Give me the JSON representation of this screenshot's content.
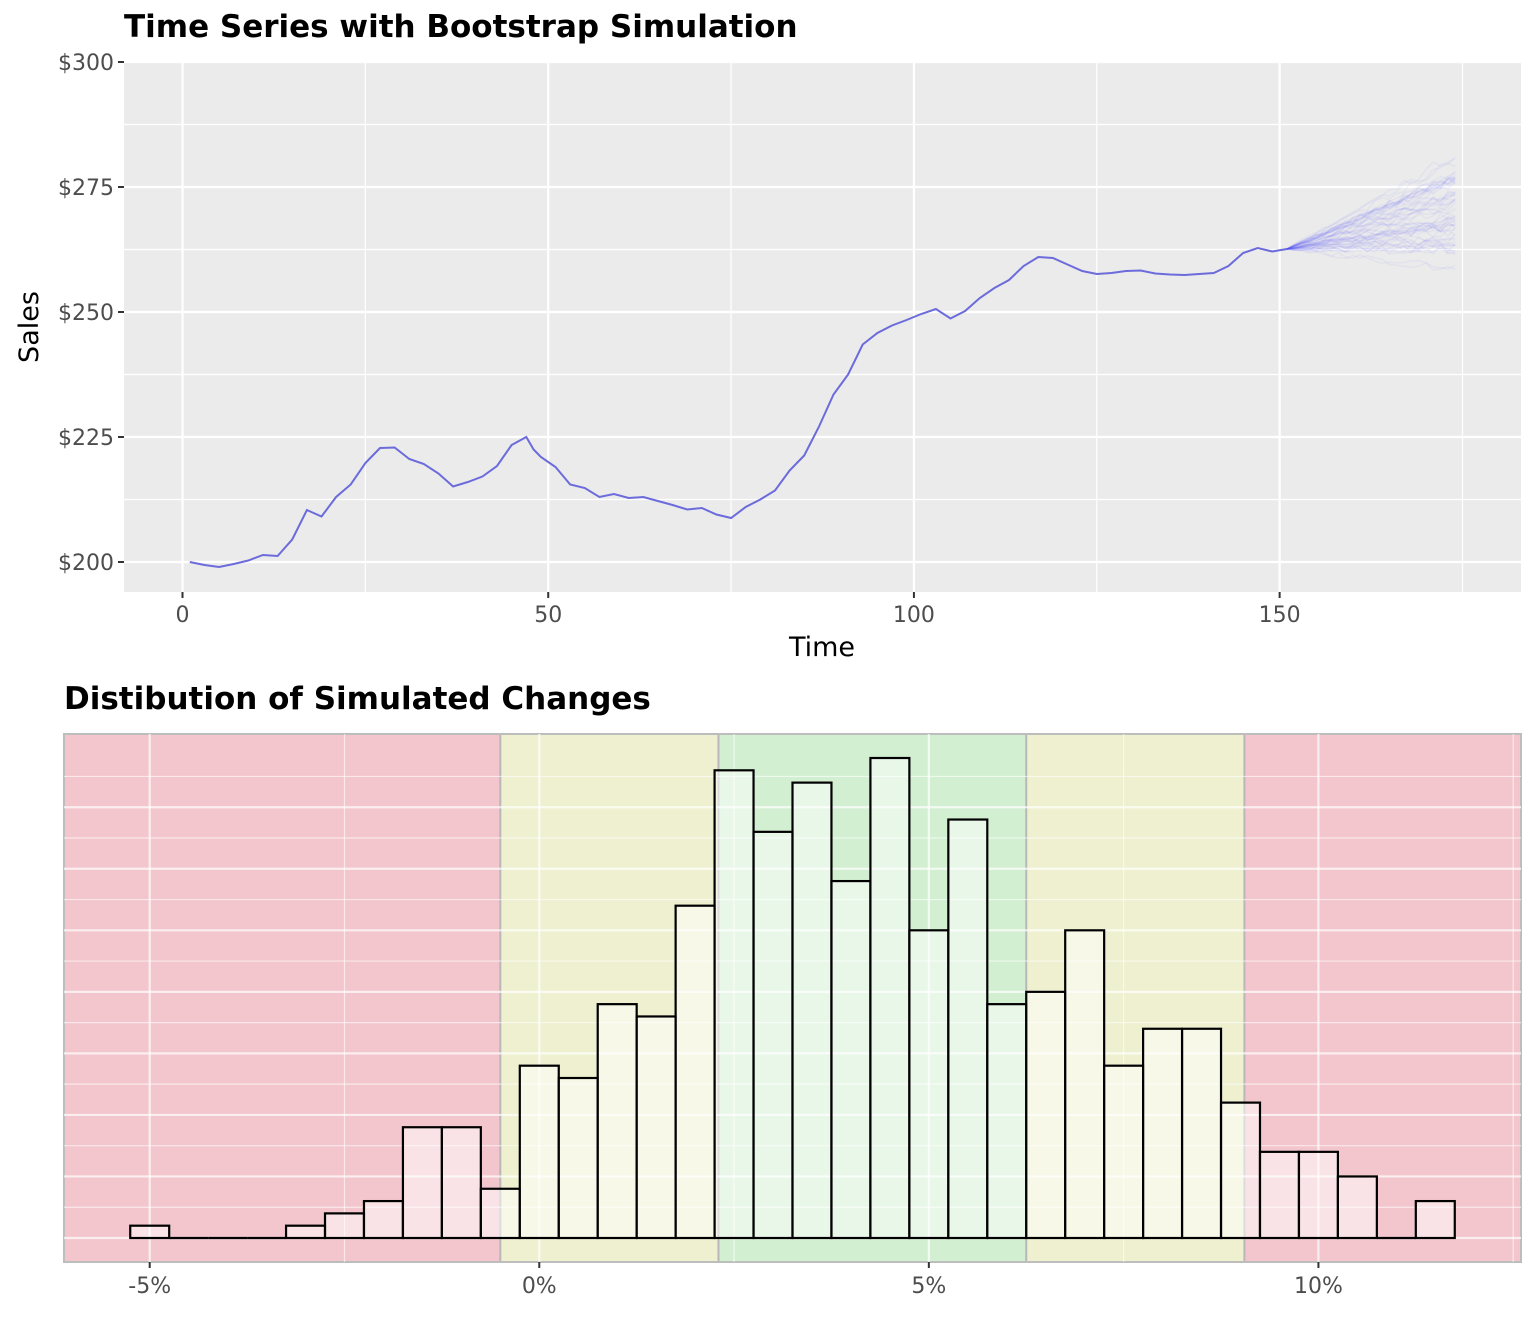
{
  "chart_data": [
    {
      "type": "line",
      "title": "Time Series with Bootstrap Simulation",
      "xlabel": "Time",
      "ylabel": "Sales",
      "xlim": [
        -8,
        183
      ],
      "ylim": [
        194,
        300
      ],
      "x_ticks": [
        0,
        50,
        100,
        150
      ],
      "x_tick_labels": [
        "0",
        "50",
        "100",
        "150"
      ],
      "y_ticks": [
        200,
        225,
        250,
        275,
        300
      ],
      "y_tick_labels": [
        "$200",
        "$225",
        "$250",
        "$275",
        "$300"
      ],
      "grid": true,
      "line_color": "#6b6bdc",
      "simulation_color": "#4d4dff",
      "series": [
        {
          "x": [
            1,
            3,
            5,
            7,
            9,
            11,
            13,
            15,
            17,
            19,
            21,
            23,
            25,
            27,
            29,
            31,
            33,
            35,
            37,
            39,
            41,
            43,
            45,
            47,
            48,
            49,
            51,
            53,
            55,
            57,
            59,
            61,
            63,
            65,
            67,
            69,
            71,
            73,
            75,
            77,
            79,
            81,
            83,
            85,
            87,
            89,
            91,
            93,
            95,
            97,
            99,
            101,
            103,
            105,
            107,
            109,
            111,
            113,
            115,
            117,
            119,
            121,
            123,
            125,
            127,
            129,
            131,
            133,
            135,
            137,
            139,
            141,
            143,
            145,
            147,
            149,
            151
          ],
          "values": [
            200,
            199.4,
            199,
            199.6,
            200.3,
            201.4,
            201.2,
            204.5,
            210.4,
            209.1,
            213,
            215.5,
            219.8,
            222.8,
            222.9,
            220.6,
            219.6,
            217.7,
            215.1,
            216,
            217.1,
            219.2,
            223.4,
            225,
            222.5,
            221,
            219,
            215.5,
            214.8,
            213,
            213.6,
            212.8,
            213,
            212.2,
            211.4,
            210.5,
            210.8,
            209.5,
            208.8,
            211,
            212.5,
            214.3,
            218.3,
            221.3,
            227,
            233.5,
            237.5,
            243.5,
            245.8,
            247.3,
            248.4,
            249.6,
            250.6,
            248.7,
            250.2,
            252.8,
            254.8,
            256.4,
            259.2,
            261,
            260.8,
            259.5,
            258.2,
            257.6,
            257.8,
            258.2,
            258.3,
            257.7,
            257.5,
            257.4,
            257.6,
            257.8,
            259.2,
            261.8,
            262.8,
            262.1,
            262.6
          ]
        }
      ],
      "simulation": {
        "start_x": 151,
        "end_x": 174,
        "start_value": 262.6,
        "end_value_range": [
          255,
          287
        ],
        "median_end_value": 272
      }
    },
    {
      "type": "bar",
      "title": "Distibution of Simulated Changes",
      "xlabel": "",
      "ylabel": "",
      "xlim": [
        -6.1,
        12.6
      ],
      "x_ticks": [
        -5,
        0,
        5,
        10
      ],
      "x_tick_labels": [
        "-5%",
        "0%",
        "5%",
        "10%"
      ],
      "grid": true,
      "bin_width": 0.5,
      "bin_left_edges": [
        -5.25,
        -4.75,
        -4.25,
        -3.75,
        -3.25,
        -2.75,
        -2.25,
        -1.75,
        -1.25,
        -0.75,
        -0.25,
        0.25,
        0.75,
        1.25,
        1.75,
        2.25,
        2.75,
        3.25,
        3.75,
        4.25,
        4.75,
        5.25,
        5.75,
        6.25,
        6.75,
        7.25,
        7.75,
        8.25,
        8.75,
        9.25,
        9.75,
        10.25,
        10.75,
        11.25
      ],
      "values": [
        1,
        0,
        0,
        0,
        1,
        2,
        3,
        9,
        9,
        4,
        14,
        13,
        19,
        18,
        27,
        38,
        33,
        37,
        29,
        39,
        25,
        34,
        19,
        20,
        25,
        14,
        17,
        17,
        11,
        7,
        7,
        5,
        0,
        3
      ],
      "bands": [
        {
          "from": -6.1,
          "to": -0.5,
          "color": "#f2c6cc"
        },
        {
          "from": -0.5,
          "to": 2.3,
          "color": "#eef0cf"
        },
        {
          "from": 2.3,
          "to": 6.25,
          "color": "#d2efd2"
        },
        {
          "from": 6.25,
          "to": 9.05,
          "color": "#eef0cf"
        },
        {
          "from": 9.05,
          "to": 12.6,
          "color": "#f2c6cc"
        }
      ],
      "bar_fill": "#ffffff",
      "bar_fill_opacity": 0.5,
      "bar_stroke": "#000000"
    }
  ]
}
